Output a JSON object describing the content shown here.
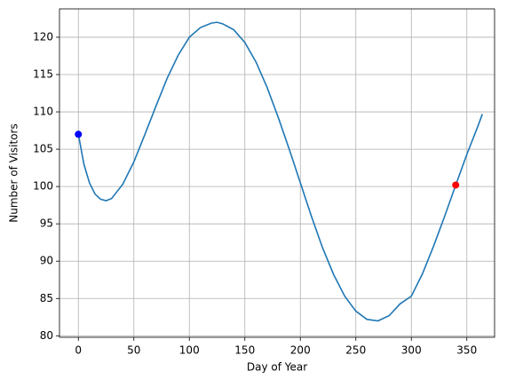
{
  "chart_data": {
    "type": "line",
    "xlabel": "Day of Year",
    "ylabel": "Number of Visitors",
    "x": [
      0,
      5,
      10,
      15,
      20,
      25,
      30,
      40,
      50,
      60,
      70,
      80,
      90,
      100,
      110,
      120,
      125,
      130,
      140,
      150,
      160,
      170,
      180,
      190,
      200,
      210,
      220,
      230,
      240,
      250,
      260,
      270,
      280,
      290,
      300,
      310,
      320,
      330,
      340,
      350,
      360,
      364
    ],
    "values": [
      107,
      103,
      100.5,
      99,
      98.3,
      98.1,
      98.4,
      100.3,
      103.3,
      107,
      110.8,
      114.5,
      117.6,
      120,
      121.3,
      121.9,
      122,
      121.8,
      121,
      119.3,
      116.7,
      113.3,
      109.3,
      105,
      100.5,
      96,
      91.8,
      88.2,
      85.3,
      83.3,
      82.2,
      82,
      82.7,
      84.3,
      85.3,
      88.3,
      92,
      96,
      100.2,
      104.3,
      108.1,
      109.7
    ],
    "color": "#1f77b4",
    "markers": [
      {
        "x": 0,
        "y": 107,
        "color": "#0000ff"
      },
      {
        "x": 340,
        "y": 100.2,
        "color": "#ff0000"
      }
    ],
    "xlim": [
      -17,
      375
    ],
    "ylim": [
      79.8,
      123.8
    ],
    "xticks": [
      0,
      50,
      100,
      150,
      200,
      250,
      300,
      350
    ],
    "yticks": [
      80,
      85,
      90,
      95,
      100,
      105,
      110,
      115,
      120
    ],
    "grid": true
  }
}
